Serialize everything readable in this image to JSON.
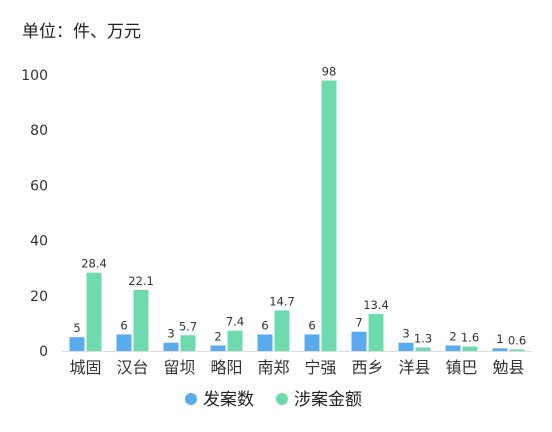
{
  "chart_data": {
    "type": "bar",
    "unit_label": "单位：件、万元",
    "categories": [
      "城固",
      "汉台",
      "留坝",
      "略阳",
      "南郑",
      "宁强",
      "西乡",
      "洋县",
      "镇巴",
      "勉县"
    ],
    "series": [
      {
        "name": "发案数",
        "color": "#5aabee",
        "values": [
          5,
          6,
          3,
          2,
          6,
          6,
          7,
          3,
          2,
          1
        ],
        "labels": [
          "5",
          "6",
          "3",
          "2",
          "6",
          "6",
          "7",
          "3",
          "2",
          "1"
        ]
      },
      {
        "name": "涉案金额",
        "color": "#6ddbae",
        "values": [
          28.4,
          22.1,
          5.7,
          7.4,
          14.7,
          98,
          13.4,
          1.3,
          1.6,
          0.6
        ],
        "labels": [
          "28.4",
          "22.1",
          "5.7",
          "7.4",
          "14.7",
          "98",
          "13.4",
          "1.3",
          "1.6",
          "0.6"
        ]
      }
    ],
    "yticks": [
      "0",
      "20",
      "40",
      "60",
      "80",
      "100"
    ],
    "ylim": [
      0,
      100
    ],
    "grid": false,
    "legend_position": "bottom"
  }
}
